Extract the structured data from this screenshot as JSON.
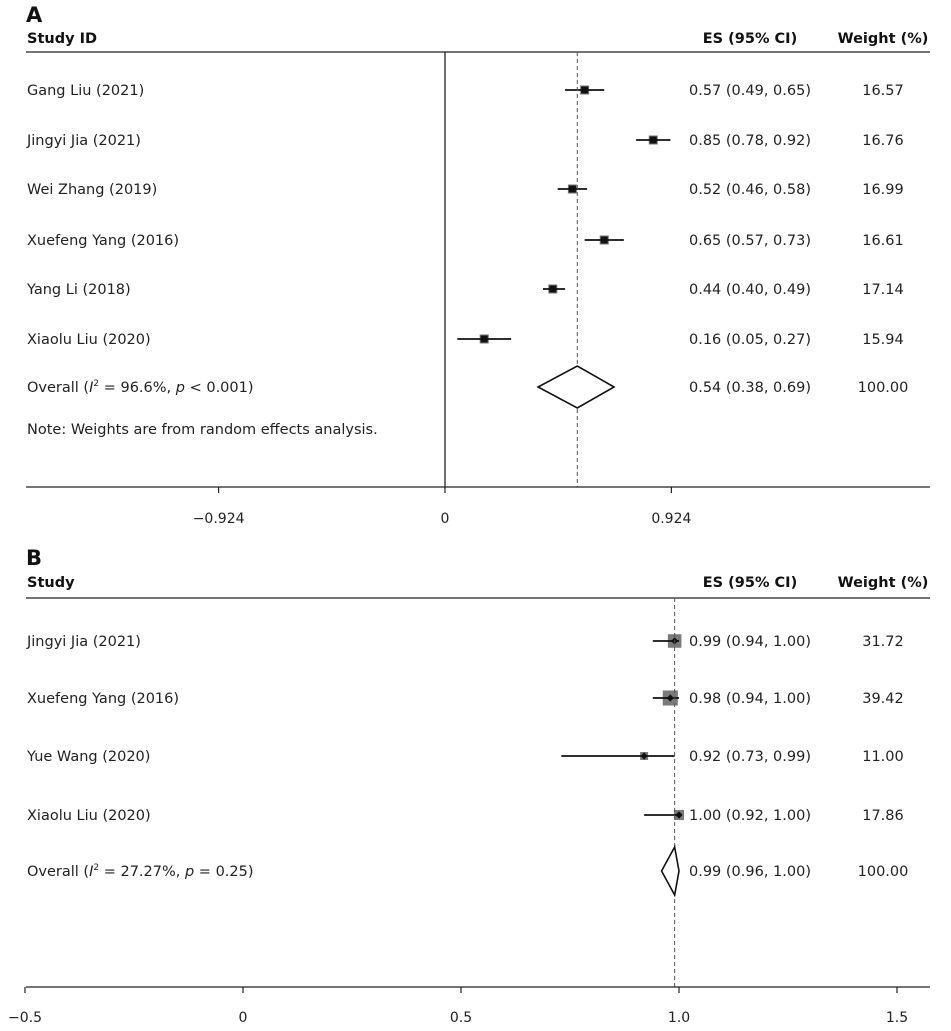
{
  "chart_data": [
    {
      "type": "forest",
      "panel_label": "A",
      "headers": {
        "study": "Study ID",
        "es": "ES (95% CI)",
        "weight": "Weight (%)"
      },
      "studies": [
        {
          "name": "Gang Liu (2021)",
          "es": 0.57,
          "lo": 0.49,
          "hi": 0.65,
          "es_text": "0.57 (0.49, 0.65)",
          "weight": "16.57"
        },
        {
          "name": "Jingyi Jia (2021)",
          "es": 0.85,
          "lo": 0.78,
          "hi": 0.92,
          "es_text": "0.85 (0.78, 0.92)",
          "weight": "16.76"
        },
        {
          "name": "Wei Zhang (2019)",
          "es": 0.52,
          "lo": 0.46,
          "hi": 0.58,
          "es_text": "0.52 (0.46, 0.58)",
          "weight": "16.99"
        },
        {
          "name": "Xuefeng Yang (2016)",
          "es": 0.65,
          "lo": 0.57,
          "hi": 0.73,
          "es_text": "0.65 (0.57, 0.73)",
          "weight": "16.61"
        },
        {
          "name": "Yang Li (2018)",
          "es": 0.44,
          "lo": 0.4,
          "hi": 0.49,
          "es_text": "0.44 (0.40, 0.49)",
          "weight": "17.14"
        },
        {
          "name": "Xiaolu Liu (2020)",
          "es": 0.16,
          "lo": 0.05,
          "hi": 0.27,
          "es_text": "0.16 (0.05, 0.27)",
          "weight": "15.94"
        }
      ],
      "overall": {
        "prefix": "Overall (",
        "stat_symbol": "I",
        "stat_sup": "2",
        "stat_value": " = 96.6%, ",
        "p_symbol": "p",
        "p_value": " < 0.001)",
        "es": 0.54,
        "lo": 0.38,
        "hi": 0.69,
        "es_text": "0.54 (0.38, 0.69)",
        "weight": "100.00"
      },
      "note": "Note: Weights are from random effects analysis.",
      "x_ticks": [
        {
          "value": -0.924,
          "label": "−0.924"
        },
        {
          "value": 0,
          "label": "0"
        },
        {
          "value": 0.924,
          "label": "0.924"
        }
      ],
      "null_line": 0,
      "xlim": [
        -1.7,
        2.0
      ]
    },
    {
      "type": "forest",
      "panel_label": "B",
      "headers": {
        "study": "Study",
        "es": "ES (95% CI)",
        "weight": "Weight (%)"
      },
      "studies": [
        {
          "name": "Jingyi Jia (2021)",
          "es": 0.99,
          "lo": 0.94,
          "hi": 1.0,
          "es_text": "0.99 (0.94, 1.00)",
          "weight": "31.72"
        },
        {
          "name": "Xuefeng Yang (2016)",
          "es": 0.98,
          "lo": 0.94,
          "hi": 1.0,
          "es_text": "0.98 (0.94, 1.00)",
          "weight": "39.42"
        },
        {
          "name": "Yue Wang (2020)",
          "es": 0.92,
          "lo": 0.73,
          "hi": 0.99,
          "es_text": "0.92 (0.73, 0.99)",
          "weight": "11.00"
        },
        {
          "name": "Xiaolu Liu (2020)",
          "es": 1.0,
          "lo": 0.92,
          "hi": 1.0,
          "es_text": "1.00 (0.92, 1.00)",
          "weight": "17.86"
        }
      ],
      "overall": {
        "prefix": "Overall (",
        "stat_symbol": "I",
        "stat_sup": "2",
        "stat_value": " = 27.27%, ",
        "p_symbol": "p",
        "p_value": " = 0.25)",
        "es": 0.99,
        "lo": 0.96,
        "hi": 1.0,
        "es_text": "0.99 (0.96, 1.00)",
        "weight": "100.00"
      },
      "x_ticks": [
        {
          "value": -0.5,
          "label": "−0.5"
        },
        {
          "value": 0,
          "label": "0"
        },
        {
          "value": 0.5,
          "label": "0.5"
        },
        {
          "value": 1.0,
          "label": "1.0"
        },
        {
          "value": 1.5,
          "label": "1.5"
        }
      ],
      "xlim": [
        -0.5,
        1.6
      ]
    }
  ]
}
